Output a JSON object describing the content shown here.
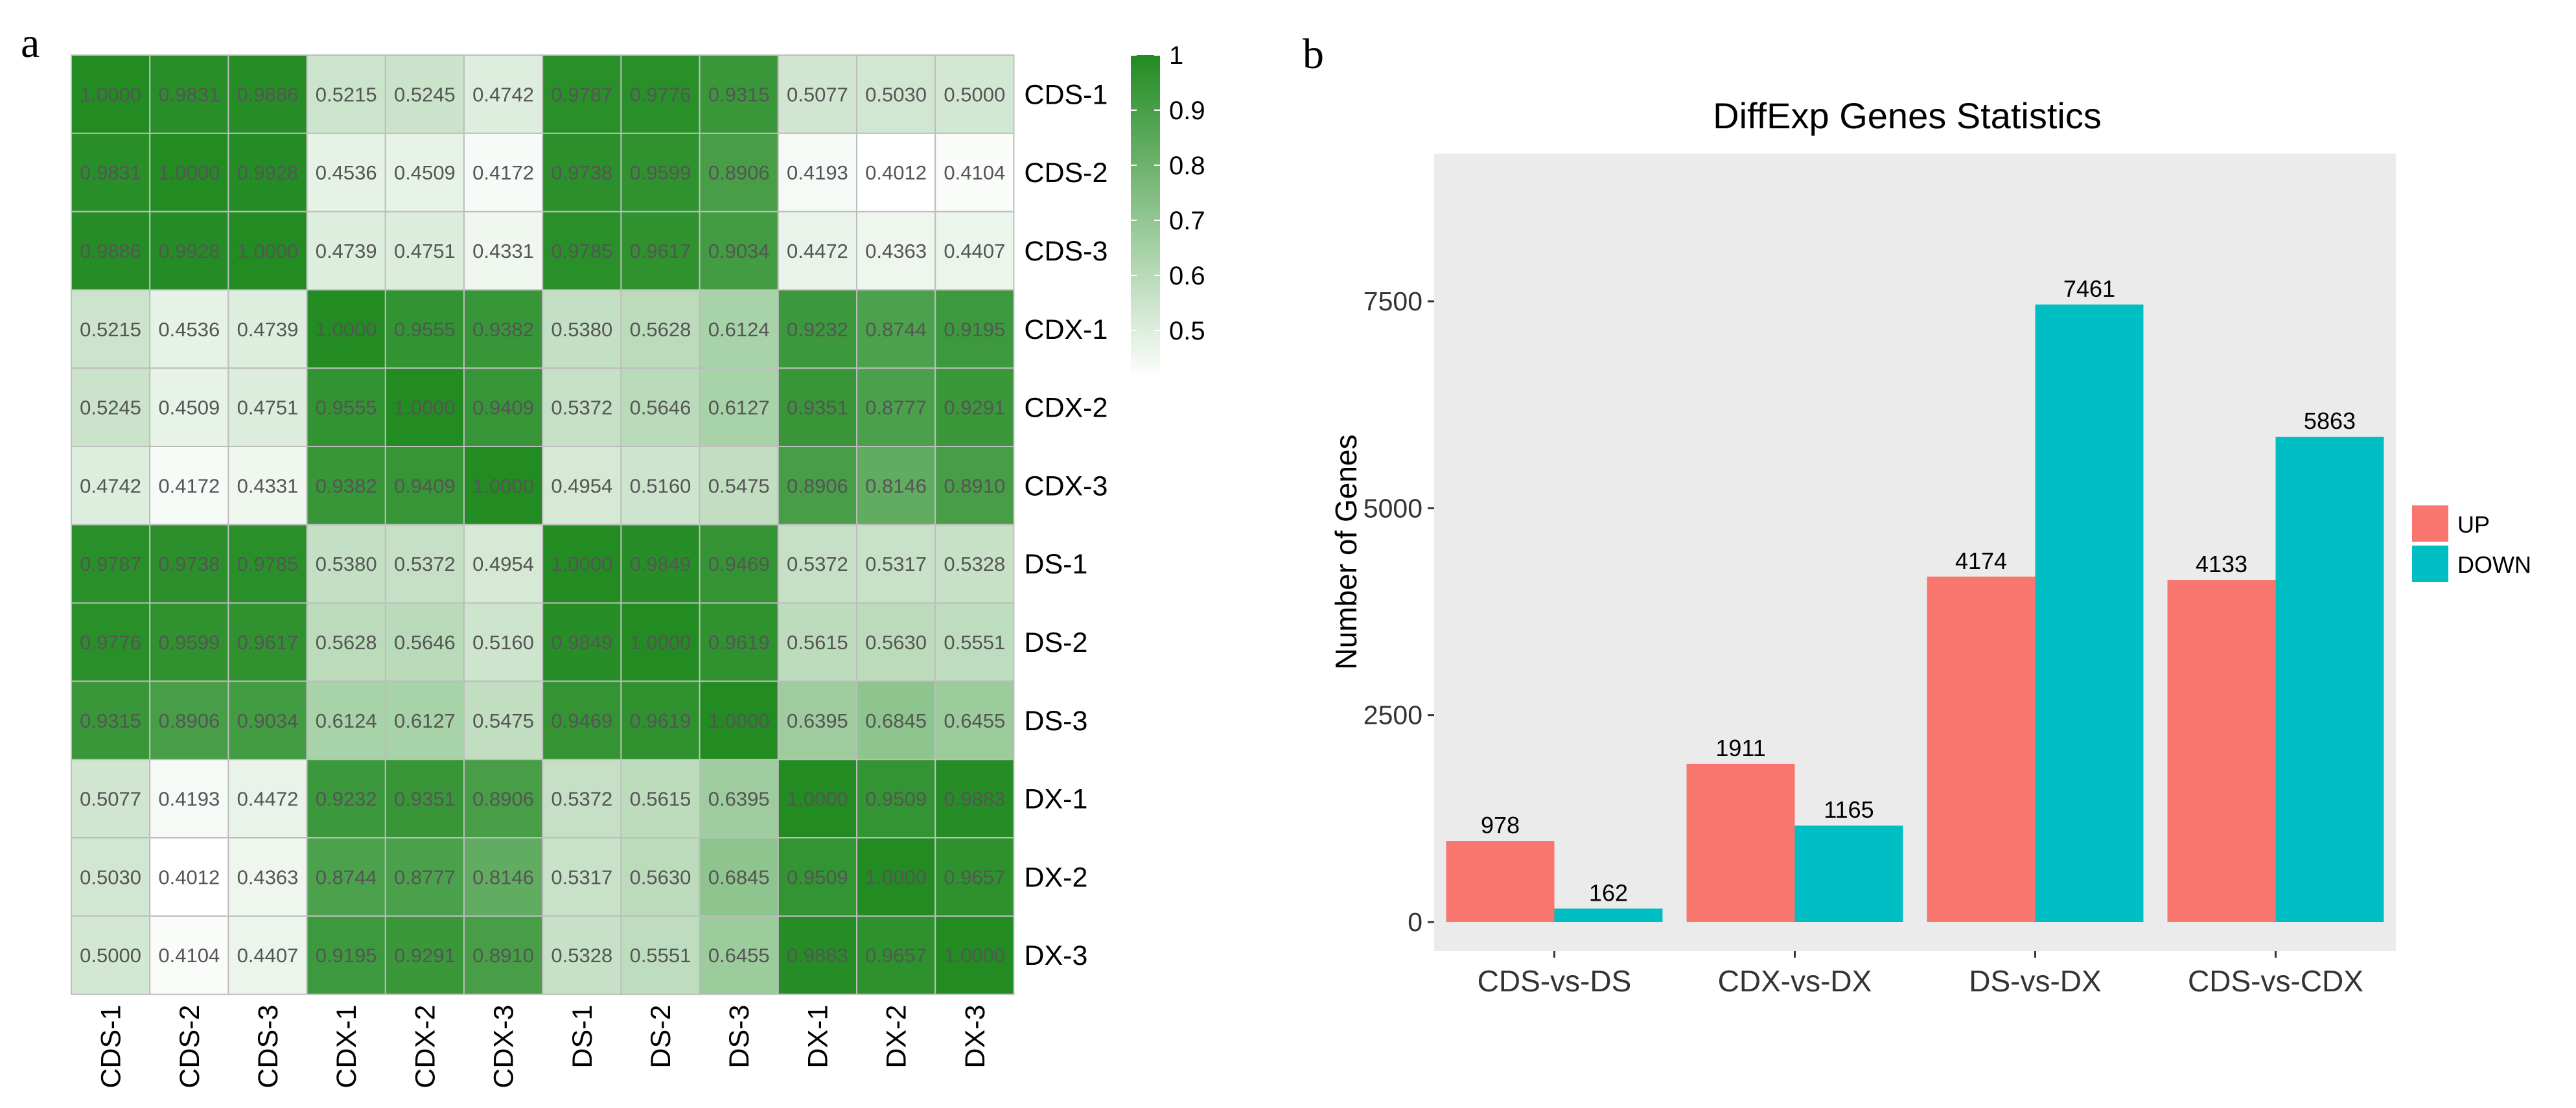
{
  "chart_data": [
    {
      "type": "heatmap",
      "panel_label": "a",
      "rows": [
        "CDS-1",
        "CDS-2",
        "CDS-3",
        "CDX-1",
        "CDX-2",
        "CDX-3",
        "DS-1",
        "DS-2",
        "DS-3",
        "DX-1",
        "DX-2",
        "DX-3"
      ],
      "columns": [
        "CDS-1",
        "CDS-2",
        "CDS-3",
        "CDX-1",
        "CDX-2",
        "CDX-3",
        "DS-1",
        "DS-2",
        "DS-3",
        "DX-1",
        "DX-2",
        "DX-3"
      ],
      "values": [
        [
          "1.0000",
          "0.9831",
          "0.9886",
          "0.5215",
          "0.5245",
          "0.4742",
          "0.9787",
          "0.9776",
          "0.9315",
          "0.5077",
          "0.5030",
          "0.5000"
        ],
        [
          "0.9831",
          "1.0000",
          "0.9928",
          "0.4536",
          "0.4509",
          "0.4172",
          "0.9738",
          "0.9599",
          "0.8906",
          "0.4193",
          "0.4012",
          "0.4104"
        ],
        [
          "0.9886",
          "0.9928",
          "1.0000",
          "0.4739",
          "0.4751",
          "0.4331",
          "0.9785",
          "0.9617",
          "0.9034",
          "0.4472",
          "0.4363",
          "0.4407"
        ],
        [
          "0.5215",
          "0.4536",
          "0.4739",
          "1.0000",
          "0.9555",
          "0.9382",
          "0.5380",
          "0.5628",
          "0.6124",
          "0.9232",
          "0.8744",
          "0.9195"
        ],
        [
          "0.5245",
          "0.4509",
          "0.4751",
          "0.9555",
          "1.0000",
          "0.9409",
          "0.5372",
          "0.5646",
          "0.6127",
          "0.9351",
          "0.8777",
          "0.9291"
        ],
        [
          "0.4742",
          "0.4172",
          "0.4331",
          "0.9382",
          "0.9409",
          "1.0000",
          "0.4954",
          "0.5160",
          "0.5475",
          "0.8906",
          "0.8146",
          "0.8910"
        ],
        [
          "0.9787",
          "0.9738",
          "0.9785",
          "0.5380",
          "0.5372",
          "0.4954",
          "1.0000",
          "0.9849",
          "0.9469",
          "0.5372",
          "0.5317",
          "0.5328"
        ],
        [
          "0.9776",
          "0.9599",
          "0.9617",
          "0.5628",
          "0.5646",
          "0.5160",
          "0.9849",
          "1.0000",
          "0.9619",
          "0.5615",
          "0.5630",
          "0.5551"
        ],
        [
          "0.9315",
          "0.8906",
          "0.9034",
          "0.6124",
          "0.6127",
          "0.5475",
          "0.9469",
          "0.9619",
          "1.0000",
          "0.6395",
          "0.6845",
          "0.6455"
        ],
        [
          "0.5077",
          "0.4193",
          "0.4472",
          "0.9232",
          "0.9351",
          "0.8906",
          "0.5372",
          "0.5615",
          "0.6395",
          "1.0000",
          "0.9509",
          "0.9883"
        ],
        [
          "0.5030",
          "0.4012",
          "0.4363",
          "0.8744",
          "0.8777",
          "0.8146",
          "0.5317",
          "0.5630",
          "0.6845",
          "0.9509",
          "1.0000",
          "0.9657"
        ],
        [
          "0.5000",
          "0.4104",
          "0.4407",
          "0.9195",
          "0.9291",
          "0.8910",
          "0.5328",
          "0.5551",
          "0.6455",
          "0.9883",
          "0.9657",
          "1.0000"
        ]
      ],
      "colorbar": {
        "ticks": [
          "1",
          "0.9",
          "0.8",
          "0.7",
          "0.6",
          "0.5"
        ],
        "min": 0.4012,
        "max": 1.0,
        "color_low": "#ffffff",
        "color_high": "#228b22"
      }
    },
    {
      "type": "bar",
      "panel_label": "b",
      "title": "DiffExp Genes Statistics",
      "xlabel": "",
      "ylabel": "Number of Genes",
      "categories": [
        "CDS-vs-DS",
        "CDX-vs-DX",
        "DS-vs-DX",
        "CDS-vs-CDX"
      ],
      "series": [
        {
          "name": "UP",
          "values": [
            978,
            1911,
            4174,
            4133
          ],
          "color": "#f8766d"
        },
        {
          "name": "DOWN",
          "values": [
            162,
            1165,
            7461,
            5863
          ],
          "color": "#00bfc4"
        }
      ],
      "ylim": [
        0,
        9000
      ],
      "yticks": [
        0,
        2500,
        5000,
        7500
      ],
      "grid": false,
      "legend": "right",
      "panel_background": "#ebebeb"
    }
  ]
}
